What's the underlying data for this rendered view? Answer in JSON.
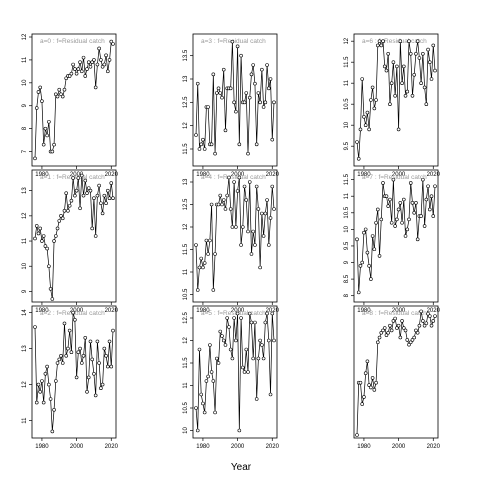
{
  "chart_data": {
    "type": "line",
    "xlabel": "Year",
    "x": [
      1976,
      1977,
      1978,
      1979,
      1980,
      1981,
      1982,
      1983,
      1984,
      1985,
      1986,
      1987,
      1988,
      1989,
      1990,
      1991,
      1992,
      1993,
      1994,
      1995,
      1996,
      1997,
      1998,
      1999,
      2000,
      2001,
      2002,
      2003,
      2004,
      2005,
      2006,
      2007,
      2008,
      2009,
      2010,
      2011,
      2012,
      2013,
      2014,
      2015,
      2016,
      2017,
      2018,
      2019,
      2020,
      2021
    ],
    "x_ticks": [
      1980,
      2000,
      2020
    ],
    "xlim": [
      1976,
      2021
    ],
    "panels": [
      {
        "title": "a=0 : f=Residual catch",
        "ylim": [
          6.5,
          12.0
        ],
        "y_ticks": [
          7,
          8,
          9,
          10,
          11,
          12
        ],
        "values": [
          6.7,
          8.9,
          9.6,
          9.8,
          9.2,
          7.3,
          8.0,
          7.7,
          8.3,
          7.0,
          7.0,
          7.3,
          9.5,
          9.4,
          9.7,
          9.5,
          9.4,
          9.7,
          10.2,
          10.3,
          10.3,
          10.4,
          10.8,
          10.6,
          10.4,
          10.6,
          10.9,
          10.5,
          11.1,
          10.3,
          10.6,
          10.9,
          10.7,
          10.9,
          11.0,
          9.8,
          10.8,
          11.5,
          11.0,
          10.7,
          10.8,
          11.2,
          10.5,
          11.0,
          11.8,
          11.7
        ]
      },
      {
        "title": "a=1 : f=Residual catch",
        "ylim": [
          8.7,
          13.7
        ],
        "y_ticks": [
          9,
          10,
          11,
          12,
          13
        ],
        "values": [
          11.1,
          11.6,
          11.3,
          11.5,
          11.0,
          11.2,
          10.8,
          10.7,
          10.0,
          9.1,
          8.7,
          11.0,
          11.2,
          11.5,
          11.8,
          12.0,
          11.9,
          12.2,
          12.9,
          12.2,
          12.4,
          12.6,
          13.5,
          12.8,
          13.0,
          13.5,
          12.3,
          13.6,
          12.8,
          13.4,
          12.9,
          13.1,
          13.0,
          11.5,
          12.7,
          11.2,
          12.8,
          13.2,
          12.5,
          12.1,
          12.8,
          12.5,
          13.0,
          12.7,
          13.3,
          12.7
        ]
      },
      {
        "title": "a=2 : f=Residual catch",
        "ylim": [
          10.6,
          14.1
        ],
        "y_ticks": [
          11,
          12,
          13,
          14
        ],
        "values": [
          13.6,
          11.5,
          12.0,
          11.8,
          12.1,
          11.5,
          12.3,
          12.5,
          12.0,
          11.6,
          10.7,
          11.3,
          12.1,
          12.6,
          12.7,
          12.8,
          12.6,
          13.7,
          12.8,
          13.0,
          13.5,
          12.9,
          14.0,
          13.8,
          12.2,
          12.9,
          13.0,
          12.6,
          12.8,
          13.3,
          11.8,
          12.2,
          13.2,
          12.7,
          12.3,
          11.7,
          13.2,
          12.6,
          11.9,
          12.0,
          13.0,
          12.8,
          12.5,
          13.2,
          12.5,
          13.5
        ]
      },
      {
        "title": "a=3 : f=Residual catch",
        "ylim": [
          11.2,
          13.9
        ],
        "y_ticks": [
          11.5,
          12.0,
          12.5,
          13.0,
          13.5
        ],
        "values": [
          11.8,
          12.9,
          11.5,
          11.6,
          11.7,
          11.5,
          12.4,
          12.4,
          11.6,
          11.6,
          13.1,
          11.4,
          12.7,
          12.8,
          12.7,
          12.6,
          13.2,
          11.9,
          12.8,
          12.8,
          12.8,
          13.8,
          12.5,
          12.3,
          13.7,
          11.6,
          13.5,
          12.5,
          12.5,
          12.7,
          11.4,
          12.6,
          13.1,
          13.3,
          12.9,
          11.6,
          12.7,
          12.5,
          13.2,
          12.4,
          12.5,
          13.3,
          12.8,
          13.0,
          11.7,
          12.5
        ]
      },
      {
        "title": "a=4 : f=Residual catch",
        "ylim": [
          10.4,
          13.2
        ],
        "y_ticks": [
          10.5,
          11.0,
          11.5,
          12.0,
          12.5,
          13.0
        ],
        "values": [
          11.6,
          10.6,
          11.1,
          11.3,
          11.1,
          11.2,
          11.7,
          11.4,
          11.7,
          12.5,
          10.6,
          11.4,
          12.5,
          12.5,
          12.7,
          12.5,
          12.6,
          12.4,
          12.7,
          13.1,
          12.4,
          12.0,
          13.0,
          12.0,
          12.8,
          13.1,
          11.6,
          12.0,
          12.9,
          12.6,
          11.9,
          13.0,
          11.4,
          11.9,
          11.6,
          12.9,
          12.4,
          11.1,
          12.3,
          11.8,
          12.3,
          12.6,
          11.6,
          12.2,
          12.9,
          12.4
        ]
      },
      {
        "title": "a=5 : f=Residual catch",
        "ylim": [
          9.9,
          12.7
        ],
        "y_ticks": [
          10.0,
          10.5,
          11.0,
          11.5,
          12.0,
          12.5
        ],
        "values": [
          10.5,
          10.0,
          11.8,
          10.8,
          10.6,
          10.4,
          11.1,
          11.2,
          11.9,
          11.3,
          11.1,
          10.4,
          11.6,
          11.5,
          12.2,
          12.1,
          12.0,
          11.9,
          12.5,
          12.3,
          11.8,
          11.6,
          12.5,
          12.0,
          12.6,
          10.0,
          12.5,
          11.4,
          11.3,
          11.8,
          11.3,
          12.6,
          12.4,
          11.6,
          12.4,
          10.7,
          11.6,
          12.0,
          11.9,
          11.6,
          12.4,
          12.6,
          12.0,
          10.8,
          12.6,
          12.0
        ]
      },
      {
        "title": "a=6 : f=Residual catch",
        "ylim": [
          9.1,
          12.1
        ],
        "y_ticks": [
          9.5,
          10.0,
          10.5,
          11.0,
          11.5,
          12.0
        ],
        "values": [
          9.6,
          9.2,
          9.9,
          11.1,
          10.2,
          10.0,
          10.3,
          9.9,
          10.6,
          10.9,
          10.4,
          10.6,
          11.9,
          12.0,
          11.9,
          12.0,
          11.4,
          11.3,
          11.7,
          10.5,
          11.0,
          11.5,
          10.7,
          11.4,
          9.9,
          12.0,
          11.0,
          11.4,
          10.7,
          10.8,
          12.0,
          11.7,
          10.7,
          11.2,
          11.7,
          12.0,
          11.6,
          11.0,
          11.7,
          10.9,
          10.5,
          11.8,
          11.5,
          11.1,
          11.9,
          11.3
        ]
      },
      {
        "title": "a=7 : f=Residual catch",
        "ylim": [
          7.9,
          11.7
        ],
        "y_ticks": [
          8.0,
          8.5,
          9.0,
          9.5,
          10.0,
          10.5,
          11.0,
          11.5
        ],
        "values": [
          9.7,
          8.1,
          8.9,
          9.0,
          9.9,
          10.0,
          9.3,
          8.9,
          8.5,
          9.8,
          9.4,
          10.2,
          10.6,
          9.2,
          10.3,
          11.4,
          11.0,
          11.0,
          10.7,
          10.9,
          10.2,
          11.5,
          10.1,
          10.3,
          10.6,
          10.8,
          10.2,
          10.9,
          9.8,
          10.0,
          10.3,
          11.4,
          10.8,
          10.5,
          10.8,
          9.7,
          10.4,
          10.4,
          11.5,
          10.1,
          10.9,
          11.3,
          10.6,
          11.0,
          10.4,
          11.3
        ]
      },
      {
        "title": "a=8 : f=Residual catch",
        "ylim": [
          6.4,
          11.7
        ],
        "y_ticks": [],
        "values": [
          6.4,
          8.6,
          8.6,
          7.7,
          8.0,
          9.0,
          9.5,
          8.5,
          8.4,
          8.8,
          8.3,
          8.6,
          10.3,
          10.5,
          10.7,
          10.8,
          10.9,
          10.6,
          10.7,
          11.0,
          10.8,
          11.2,
          11.3,
          10.9,
          11.0,
          10.5,
          11.2,
          10.9,
          10.8,
          10.4,
          10.2,
          10.3,
          10.4,
          10.5,
          10.8,
          10.7,
          11.0,
          11.6,
          11.2,
          11.0,
          11.1,
          11.5,
          11.4,
          11.0,
          11.2,
          11.4
        ]
      }
    ]
  }
}
